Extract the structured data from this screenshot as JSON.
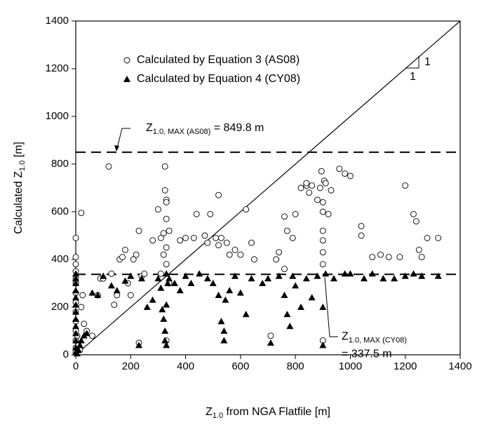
{
  "chart_data": {
    "type": "scatter",
    "xlabel": [
      "Z",
      "1.0",
      " from NGA Flatfile  [m]"
    ],
    "ylabel": [
      "Calculated Z",
      "1.0",
      "  [m]"
    ],
    "xlim": [
      0,
      1400
    ],
    "ylim": [
      0,
      1400
    ],
    "xticks": [
      0,
      200,
      400,
      600,
      800,
      1000,
      1200,
      1400
    ],
    "yticks": [
      0,
      200,
      400,
      600,
      800,
      1000,
      1200,
      1400
    ],
    "series": [
      {
        "name": "Calculated by Equation 3 (AS08)",
        "marker": "circle",
        "color": "#000000",
        "x": [
          0,
          0,
          0,
          0,
          0,
          0,
          0,
          0,
          0,
          0,
          0,
          0,
          0,
          0,
          5,
          10,
          15,
          20,
          20,
          25,
          30,
          40,
          60,
          80,
          90,
          100,
          120,
          130,
          140,
          150,
          160,
          170,
          180,
          190,
          200,
          210,
          220,
          230,
          230,
          240,
          250,
          280,
          300,
          310,
          310,
          320,
          320,
          325,
          325,
          330,
          330,
          330,
          330,
          330,
          330,
          340,
          340,
          380,
          400,
          430,
          440,
          470,
          480,
          490,
          510,
          520,
          520,
          530,
          550,
          560,
          580,
          600,
          620,
          640,
          650,
          710,
          730,
          740,
          760,
          760,
          770,
          790,
          800,
          820,
          840,
          840,
          850,
          860,
          880,
          890,
          895,
          900,
          900,
          900,
          900,
          900,
          900,
          900,
          905,
          910,
          920,
          930,
          960,
          980,
          1000,
          1040,
          1040,
          1080,
          1110,
          1140,
          1180,
          1200,
          1230,
          1240,
          1250,
          1260,
          1280,
          1320
        ],
        "values": [
          490,
          410,
          380,
          350,
          320,
          300,
          260,
          220,
          180,
          140,
          100,
          60,
          30,
          10,
          80,
          40,
          20,
          595,
          200,
          250,
          130,
          100,
          80,
          250,
          320,
          320,
          790,
          340,
          210,
          250,
          400,
          410,
          440,
          300,
          250,
          400,
          420,
          520,
          50,
          330,
          340,
          480,
          610,
          490,
          340,
          510,
          420,
          790,
          690,
          650,
          640,
          570,
          450,
          380,
          60,
          520,
          300,
          480,
          490,
          490,
          590,
          500,
          470,
          590,
          490,
          670,
          460,
          490,
          470,
          420,
          440,
          420,
          610,
          470,
          400,
          80,
          400,
          430,
          580,
          360,
          520,
          490,
          590,
          700,
          710,
          720,
          680,
          710,
          650,
          700,
          770,
          640,
          600,
          520,
          480,
          430,
          380,
          60,
          730,
          720,
          590,
          690,
          780,
          760,
          750,
          540,
          500,
          410,
          420,
          410,
          410,
          710,
          590,
          560,
          440,
          410,
          490,
          490
        ]
      },
      {
        "name": "Calculated by Equation 4 (CY08)",
        "marker": "triangle",
        "color": "#000000",
        "x": [
          0,
          0,
          0,
          0,
          0,
          0,
          0,
          0,
          0,
          0,
          0,
          0,
          0,
          5,
          10,
          15,
          20,
          30,
          40,
          60,
          80,
          100,
          130,
          150,
          180,
          200,
          230,
          240,
          260,
          280,
          300,
          310,
          315,
          320,
          325,
          325,
          330,
          330,
          330,
          335,
          340,
          360,
          380,
          400,
          420,
          450,
          480,
          500,
          520,
          530,
          540,
          540,
          545,
          560,
          580,
          600,
          620,
          640,
          680,
          700,
          710,
          740,
          760,
          770,
          780,
          790,
          800,
          820,
          840,
          860,
          880,
          900,
          900,
          910,
          940,
          980,
          1000,
          1050,
          1080,
          1120,
          1160,
          1200,
          1230,
          1260,
          1320
        ],
        "values": [
          340,
          320,
          300,
          270,
          240,
          210,
          180,
          150,
          120,
          90,
          60,
          30,
          10,
          5,
          20,
          40,
          60,
          80,
          90,
          260,
          250,
          330,
          290,
          270,
          310,
          330,
          40,
          320,
          200,
          230,
          320,
          280,
          190,
          150,
          100,
          60,
          40,
          210,
          340,
          300,
          320,
          300,
          270,
          330,
          300,
          340,
          320,
          300,
          250,
          140,
          100,
          60,
          230,
          270,
          330,
          260,
          170,
          320,
          300,
          320,
          50,
          330,
          250,
          170,
          120,
          330,
          290,
          200,
          320,
          240,
          330,
          40,
          200,
          340,
          320,
          340,
          340,
          320,
          340,
          320,
          320,
          330,
          340,
          330,
          330
        ]
      }
    ],
    "reference_line": {
      "x": [
        0,
        1400
      ],
      "values": [
        0,
        1400
      ]
    },
    "slope_labels": [
      "1",
      "1"
    ],
    "hlines": [
      {
        "value": 849.8,
        "label": [
          "Z",
          "1.0, MAX (AS08)",
          " = 849.8 m"
        ]
      },
      {
        "value": 337.5,
        "label": [
          "Z",
          "1.0, MAX (CY08)",
          "= 337.5 m"
        ]
      }
    ]
  }
}
